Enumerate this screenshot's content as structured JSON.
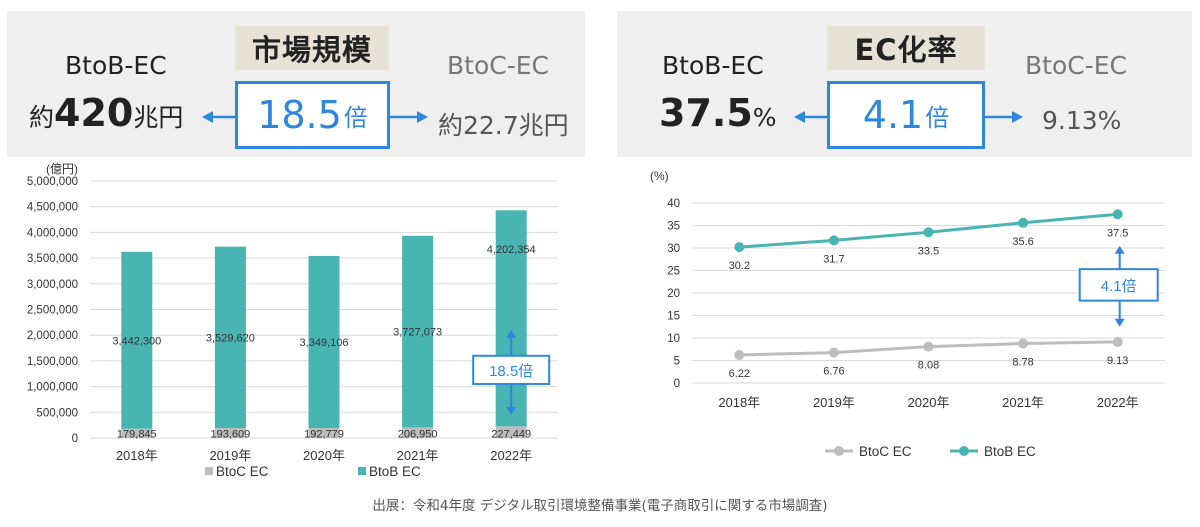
{
  "left_panel": {
    "tag": "市場規模",
    "left_label": "BtoB-EC",
    "left_value_prefix": "約",
    "left_value_number": "420",
    "left_value_unit": "兆円",
    "ratio_number": "18.5",
    "ratio_unit": "倍",
    "right_label": "BtoC-EC",
    "right_value": "約22.7兆円"
  },
  "right_panel": {
    "tag": "EC化率",
    "left_label": "BtoB-EC",
    "left_value_number": "37.5",
    "left_value_unit": "%",
    "ratio_number": "4.1",
    "ratio_unit": "倍",
    "right_label": "BtoC-EC",
    "right_value": "9.13%"
  },
  "colors": {
    "btob": "#48b5b3",
    "btoc": "#bdbdbd",
    "accent": "#2f86dd"
  },
  "chart_data": [
    {
      "type": "bar",
      "stacked": true,
      "ylabel": "(億円)",
      "ylim": [
        0,
        5000000
      ],
      "yticks": [
        "0",
        "500,000",
        "1,000,000",
        "1,500,000",
        "2,000,000",
        "2,500,000",
        "3,000,000",
        "3,500,000",
        "4,000,000",
        "4,500,000",
        "5,000,000"
      ],
      "categories": [
        "2018年",
        "2019年",
        "2020年",
        "2021年",
        "2022年"
      ],
      "series": [
        {
          "name": "BtoC EC",
          "values": [
            179845,
            193609,
            192779,
            206950,
            227449
          ],
          "labels": [
            "179,845",
            "193,609",
            "192,779",
            "206,950",
            "227,449"
          ]
        },
        {
          "name": "BtoB EC",
          "values": [
            3442300,
            3529620,
            3349106,
            3727073,
            4202354
          ],
          "labels": [
            "3,442,300",
            "3,529,620",
            "3,349,106",
            "3,727,073",
            "4,202,354"
          ]
        }
      ],
      "annotation": "18.5倍",
      "legend_position": "bottom"
    },
    {
      "type": "line",
      "ylabel": "(%)",
      "ylim": [
        0,
        40
      ],
      "yticks": [
        "0",
        "5",
        "10",
        "15",
        "20",
        "25",
        "30",
        "35",
        "40"
      ],
      "categories": [
        "2018年",
        "2019年",
        "2020年",
        "2021年",
        "2022年"
      ],
      "series": [
        {
          "name": "BtoC EC",
          "values": [
            6.22,
            6.76,
            8.08,
            8.78,
            9.13
          ],
          "labels": [
            "6.22",
            "6.76",
            "8.08",
            "8.78",
            "9.13"
          ]
        },
        {
          "name": "BtoB EC",
          "values": [
            30.2,
            31.7,
            33.5,
            35.6,
            37.5
          ],
          "labels": [
            "30.2",
            "31.7",
            "33.5",
            "35.6",
            "37.5"
          ]
        }
      ],
      "annotation": "4.1倍",
      "legend_position": "bottom"
    }
  ],
  "footer": "出展：令和4年度 デジタル取引環境整備事業(電子商取引に関する市場調査)"
}
